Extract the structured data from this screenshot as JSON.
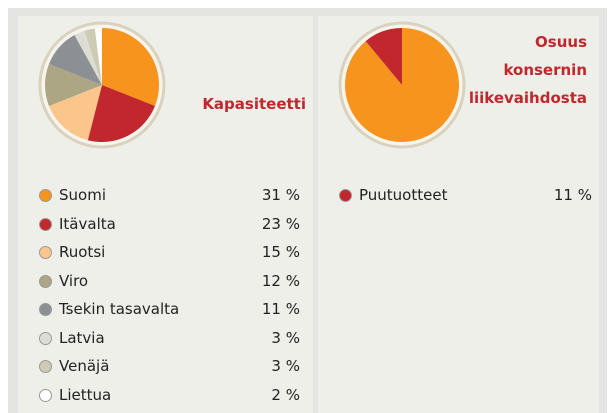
{
  "chart_data": [
    {
      "type": "pie",
      "title": "Kapasiteetti",
      "categories": [
        "Suomi",
        "Itävalta",
        "Ruotsi",
        "Viro",
        "Tsekin tasavalta",
        "Latvia",
        "Venäjä",
        "Liettua"
      ],
      "values": [
        31,
        23,
        15,
        12,
        11,
        3,
        3,
        2
      ],
      "value_labels": [
        "31 %",
        "23 %",
        "15 %",
        "12 %",
        "11 %",
        "3 %",
        "3 %",
        "2 %"
      ],
      "colors": [
        "#f7941d",
        "#c1272d",
        "#fbc68c",
        "#aca685",
        "#8c8f94",
        "#dcddd3",
        "#cfcab3",
        "#ffffff"
      ]
    },
    {
      "type": "pie",
      "title": "Osuus konsernin liikevaihdosta",
      "categories": [
        null,
        "Puutuotteet"
      ],
      "values": [
        89,
        11
      ],
      "value_labels": [
        null,
        "11 %"
      ],
      "colors": [
        "#f7941d",
        "#c1272d"
      ]
    }
  ]
}
